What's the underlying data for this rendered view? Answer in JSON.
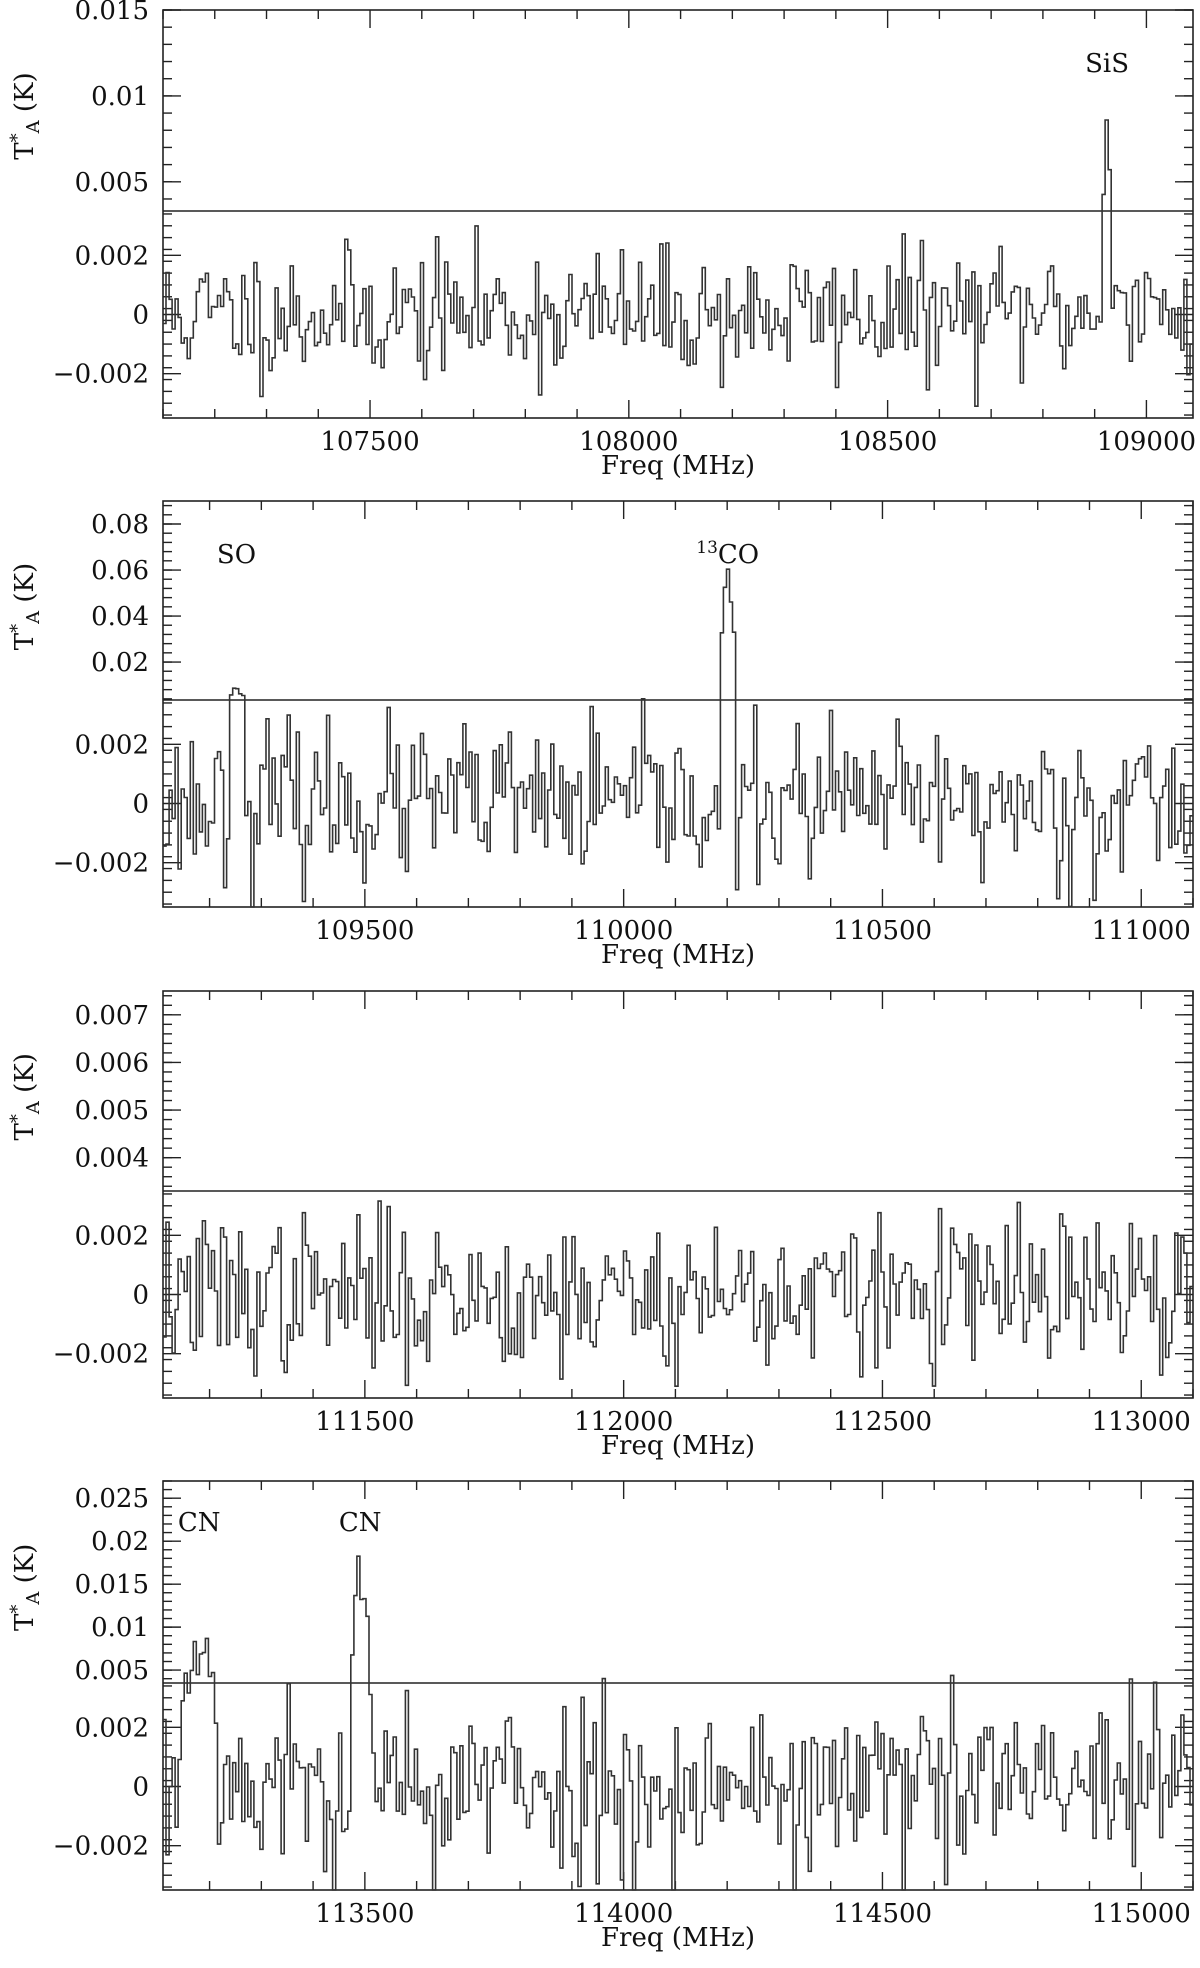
{
  "chart_data": [
    {
      "type": "line",
      "xlabel": "Freq (MHz)",
      "ylabel": "T*A (K)",
      "xlim": [
        107100,
        109090
      ],
      "x_ticks": [
        107500,
        108000,
        108500,
        109000
      ],
      "x_tick_labels": [
        "107500",
        "108000",
        "108500",
        "109000"
      ],
      "upper_ylim": [
        0.0033,
        0.015
      ],
      "upper_y_ticks": [
        0.005,
        0.01,
        0.015
      ],
      "upper_y_tick_labels": [
        "0.005",
        "0.01",
        "0.015"
      ],
      "lower_ylim": [
        -0.0035,
        0.0035
      ],
      "lower_y_ticks": [
        -0.002,
        0,
        0.002
      ],
      "lower_y_tick_labels": [
        "−0.002",
        "0",
        "0.002"
      ],
      "noise_rms": 0.0011,
      "seed": 11,
      "lines": [
        {
          "label": "SiS",
          "sup": "",
          "x": 108924,
          "peak": 0.0096,
          "width": 20
        }
      ]
    },
    {
      "type": "line",
      "xlabel": "Freq (MHz)",
      "ylabel": "T*A (K)",
      "xlim": [
        109110,
        111100
      ],
      "x_ticks": [
        109500,
        110000,
        110500,
        111000
      ],
      "x_tick_labels": [
        "109500",
        "110000",
        "110500",
        "111000"
      ],
      "upper_ylim": [
        0.0035,
        0.09
      ],
      "upper_y_ticks": [
        0.02,
        0.04,
        0.06,
        0.08
      ],
      "upper_y_tick_labels": [
        "0.02",
        "0.04",
        "0.06",
        "0.08"
      ],
      "lower_ylim": [
        -0.0035,
        0.0035
      ],
      "lower_y_ticks": [
        -0.002,
        0,
        0.002
      ],
      "lower_y_tick_labels": [
        "−0.002",
        "0",
        "0.002"
      ],
      "noise_rms": 0.0013,
      "seed": 23,
      "lines": [
        {
          "label": "SO",
          "sup": "",
          "x": 109252,
          "peak": 0.0105,
          "width": 30
        },
        {
          "label": "CO",
          "sup": "13",
          "x": 110201,
          "peak": 0.059,
          "width": 26
        }
      ]
    },
    {
      "type": "line",
      "xlabel": "Freq (MHz)",
      "ylabel": "T*A (K)",
      "xlim": [
        111110,
        113100
      ],
      "x_ticks": [
        111500,
        112000,
        112500,
        113000
      ],
      "x_tick_labels": [
        "111500",
        "112000",
        "112500",
        "113000"
      ],
      "upper_ylim": [
        0.0033,
        0.0075
      ],
      "upper_y_ticks": [
        0.004,
        0.005,
        0.006,
        0.007
      ],
      "upper_y_tick_labels": [
        "0.004",
        "0.005",
        "0.006",
        "0.007"
      ],
      "lower_ylim": [
        -0.0035,
        0.0035
      ],
      "lower_y_ticks": [
        -0.002,
        0,
        0.002
      ],
      "lower_y_tick_labels": [
        "−0.002",
        "0",
        "0.002"
      ],
      "noise_rms": 0.0013,
      "seed": 37,
      "lines": []
    },
    {
      "type": "line",
      "xlabel": "Freq (MHz)",
      "ylabel": "T*A (K)",
      "xlim": [
        113110,
        115100
      ],
      "x_ticks": [
        113500,
        114000,
        114500,
        115000
      ],
      "x_tick_labels": [
        "113500",
        "114000",
        "114500",
        "115000"
      ],
      "upper_ylim": [
        0.0035,
        0.027
      ],
      "upper_y_ticks": [
        0.005,
        0.01,
        0.015,
        0.02,
        0.025
      ],
      "upper_y_tick_labels": [
        "0.005",
        "0.01",
        "0.015",
        "0.02",
        "0.025"
      ],
      "lower_ylim": [
        -0.0035,
        0.0035
      ],
      "lower_y_ticks": [
        -0.002,
        0,
        0.002
      ],
      "lower_y_tick_labels": [
        "−0.002",
        "0",
        "0.002"
      ],
      "noise_rms": 0.0016,
      "seed": 53,
      "lines": [
        {
          "label": "CN",
          "sup": "",
          "x": 113180,
          "peak": 0.0075,
          "width": 70
        },
        {
          "label": "CN",
          "sup": "",
          "x": 113491,
          "peak": 0.017,
          "width": 36
        }
      ]
    }
  ]
}
